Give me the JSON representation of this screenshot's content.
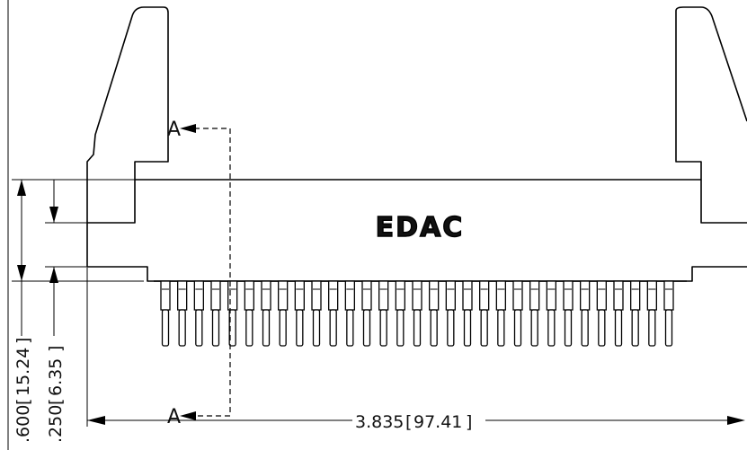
{
  "section_labels": {
    "top": "A",
    "bottom": "A"
  },
  "logo": {
    "text": "EDAC"
  },
  "dimensions": {
    "width": {
      "value": "3.835",
      "metric": "97.41"
    },
    "overall_height": {
      "value": ".600",
      "metric": "15.24"
    },
    "offset_height": {
      "value": ".250",
      "metric": "6.35"
    }
  },
  "pins": {
    "count": 31
  }
}
